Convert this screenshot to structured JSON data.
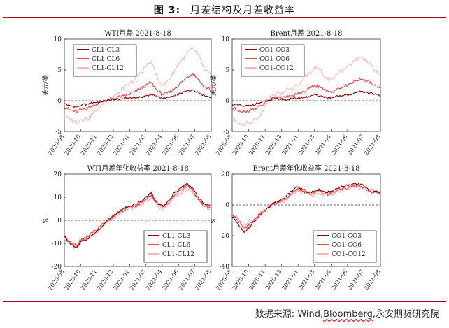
{
  "figure": {
    "label": "图 3:",
    "title": "月差结构及月差收益率",
    "source_prefix": "数据来源:",
    "source_main": "Wind,",
    "source_underlined": "Bloomberg",
    "source_suffix": ",永安期货研究院"
  },
  "colors": {
    "rule": "#a00015",
    "s1": "#8b0000",
    "s2": "#e8474c",
    "s3": "#f7b7bb"
  },
  "chart_data": [
    {
      "type": "line",
      "title": "WTI月差 2021-8-18",
      "ylabel": "美元/桶",
      "ylim": [
        -5,
        10
      ],
      "yticks": [
        "-5",
        "0",
        "5",
        "10"
      ],
      "xlim": [
        "2020-08-01",
        "2021-08-18"
      ],
      "x_tick_labels": [
        "2020-08",
        "2020-10",
        "2020-11",
        "2020-12",
        "2021-01",
        "2021-03",
        "2021-04",
        "2021-06",
        "2021-07",
        "2021-08"
      ],
      "zero_line": "dashed",
      "legend_position": "top-left",
      "x": [
        "2020-08-01",
        "2020-08-15",
        "2020-09-01",
        "2020-09-15",
        "2020-10-01",
        "2020-10-15",
        "2020-11-01",
        "2020-11-15",
        "2020-12-01",
        "2020-12-15",
        "2021-01-01",
        "2021-01-15",
        "2021-02-01",
        "2021-02-15",
        "2021-03-01",
        "2021-03-15",
        "2021-04-01",
        "2021-04-15",
        "2021-05-01",
        "2021-05-15",
        "2021-06-01",
        "2021-06-15",
        "2021-07-01",
        "2021-07-15",
        "2021-08-01",
        "2021-08-18"
      ],
      "series": [
        {
          "name": "CL1-CL3",
          "values": [
            -0.5,
            -0.8,
            -1.0,
            -0.7,
            -0.5,
            -0.3,
            -0.2,
            0.0,
            0.1,
            0.2,
            0.3,
            0.4,
            0.5,
            0.6,
            0.8,
            1.0,
            0.6,
            0.4,
            0.5,
            0.8,
            1.2,
            1.6,
            1.8,
            1.4,
            0.8,
            0.6
          ]
        },
        {
          "name": "CL1-CL6",
          "values": [
            -1.0,
            -1.5,
            -1.8,
            -1.4,
            -1.2,
            -0.8,
            -0.3,
            0.0,
            0.2,
            0.5,
            0.8,
            1.0,
            1.5,
            2.0,
            2.5,
            3.0,
            1.5,
            1.0,
            1.3,
            2.0,
            3.0,
            3.8,
            4.5,
            3.5,
            2.2,
            1.8
          ]
        },
        {
          "name": "CL1-CL12",
          "values": [
            -2.5,
            -3.0,
            -3.5,
            -3.0,
            -3.0,
            -2.0,
            -1.0,
            0.0,
            0.5,
            1.0,
            2.0,
            2.5,
            3.5,
            4.5,
            5.5,
            6.5,
            3.5,
            2.5,
            3.5,
            5.0,
            6.5,
            7.5,
            8.5,
            7.5,
            5.0,
            4.0
          ]
        }
      ]
    },
    {
      "type": "line",
      "title": "Brent月差 2021-8-18",
      "ylabel": "美元/桶",
      "ylim": [
        -5,
        10
      ],
      "yticks": [
        "-5",
        "0",
        "5",
        "10"
      ],
      "xlim": [
        "2020-08-01",
        "2021-08-18"
      ],
      "x_tick_labels": [
        "2020-08",
        "2020-10",
        "2020-11",
        "2020-12",
        "2021-01",
        "2021-03",
        "2021-04",
        "2021-06",
        "2021-07",
        "2021-08"
      ],
      "zero_line": "dashed",
      "legend_position": "top-left",
      "x": [
        "2020-08-01",
        "2020-08-15",
        "2020-09-01",
        "2020-09-15",
        "2020-10-01",
        "2020-10-15",
        "2020-11-01",
        "2020-11-15",
        "2020-12-01",
        "2020-12-15",
        "2021-01-01",
        "2021-01-15",
        "2021-02-01",
        "2021-02-15",
        "2021-03-01",
        "2021-03-15",
        "2021-04-01",
        "2021-04-15",
        "2021-05-01",
        "2021-05-15",
        "2021-06-01",
        "2021-06-15",
        "2021-07-01",
        "2021-07-15",
        "2021-08-01",
        "2021-08-18"
      ],
      "series": [
        {
          "name": "CO1-CO3",
          "values": [
            -0.6,
            -0.7,
            -0.9,
            -0.8,
            -0.5,
            -0.3,
            0.0,
            0.2,
            0.3,
            0.2,
            0.3,
            0.4,
            0.5,
            0.7,
            1.0,
            0.8,
            0.5,
            0.5,
            0.7,
            0.8,
            1.0,
            1.3,
            1.5,
            1.4,
            1.0,
            0.9
          ]
        },
        {
          "name": "CO1-CO6",
          "values": [
            -1.2,
            -1.5,
            -1.8,
            -1.6,
            -1.2,
            -0.8,
            0.0,
            0.5,
            0.5,
            0.6,
            0.8,
            1.0,
            1.5,
            2.0,
            2.5,
            2.2,
            1.5,
            1.5,
            2.0,
            2.2,
            2.8,
            3.2,
            3.5,
            3.2,
            2.5,
            2.2
          ]
        },
        {
          "name": "CO1-CO12",
          "values": [
            -3.0,
            -3.5,
            -3.8,
            -3.5,
            -3.0,
            -2.0,
            0.0,
            1.0,
            1.2,
            1.5,
            2.0,
            2.5,
            3.5,
            4.5,
            5.5,
            5.0,
            3.5,
            3.5,
            4.5,
            5.0,
            6.0,
            6.5,
            7.0,
            6.5,
            5.0,
            4.5
          ]
        }
      ]
    },
    {
      "type": "line",
      "title": "WTI月差年化收益率 2021-8-18",
      "ylabel": "%",
      "ylim": [
        -20,
        20
      ],
      "yticks": [
        "-20",
        "-10",
        "0",
        "10",
        "20"
      ],
      "xlim": [
        "2020-08-01",
        "2021-08-18"
      ],
      "x_tick_labels": [
        "2020-08",
        "2020-10",
        "2020-11",
        "2020-12",
        "2021-01",
        "2021-03",
        "2021-04",
        "2021-06",
        "2021-07",
        "2021-08"
      ],
      "zero_line": "dashed",
      "legend_position": "bottom-right",
      "x": [
        "2020-08-01",
        "2020-08-15",
        "2020-09-01",
        "2020-09-15",
        "2020-10-01",
        "2020-10-15",
        "2020-11-01",
        "2020-11-15",
        "2020-12-01",
        "2020-12-15",
        "2021-01-01",
        "2021-01-15",
        "2021-02-01",
        "2021-02-15",
        "2021-03-01",
        "2021-03-15",
        "2021-04-01",
        "2021-04-15",
        "2021-05-01",
        "2021-05-15",
        "2021-06-01",
        "2021-06-15",
        "2021-07-01",
        "2021-07-15",
        "2021-08-01",
        "2021-08-18"
      ],
      "series": [
        {
          "name": "CL1-CL3",
          "values": [
            -7,
            -10,
            -12,
            -9,
            -8,
            -6,
            -4,
            -1,
            1,
            3,
            5,
            6,
            7,
            8,
            10,
            12,
            7,
            6,
            9,
            12,
            14,
            16,
            14,
            10,
            7,
            6
          ]
        },
        {
          "name": "CL1-CL6",
          "values": [
            -7,
            -9,
            -11,
            -8,
            -7,
            -5,
            -3,
            -1,
            1,
            3,
            4,
            6,
            6,
            8,
            9,
            11,
            7,
            6,
            8,
            11,
            13,
            15,
            13,
            9,
            6,
            5
          ]
        },
        {
          "name": "CL1-CL12",
          "values": [
            -8,
            -10,
            -12,
            -9,
            -8,
            -6,
            -4,
            -1,
            1,
            2,
            4,
            5,
            6,
            7,
            8,
            10,
            6,
            5,
            7,
            10,
            12,
            13,
            12,
            9,
            6,
            5
          ]
        }
      ]
    },
    {
      "type": "line",
      "title": "Brent月差年化收益率 2021-8-18",
      "ylabel": "%",
      "ylim": [
        -40,
        20
      ],
      "yticks": [
        "-40",
        "-20",
        "0",
        "20"
      ],
      "xlim": [
        "2020-08-01",
        "2021-08-18"
      ],
      "x_tick_labels": [
        "2020-08",
        "2020-10",
        "2020-11",
        "2020-12",
        "2021-01",
        "2021-03",
        "2021-04",
        "2021-06",
        "2021-07",
        "2021-08"
      ],
      "zero_line": "dashed",
      "legend_position": "bottom-right",
      "x": [
        "2020-08-01",
        "2020-08-15",
        "2020-09-01",
        "2020-09-15",
        "2020-10-01",
        "2020-10-15",
        "2020-11-01",
        "2020-11-15",
        "2020-12-01",
        "2020-12-15",
        "2021-01-01",
        "2021-01-15",
        "2021-02-01",
        "2021-02-15",
        "2021-03-01",
        "2021-03-15",
        "2021-04-01",
        "2021-04-15",
        "2021-05-01",
        "2021-05-15",
        "2021-06-01",
        "2021-06-15",
        "2021-07-01",
        "2021-07-15",
        "2021-08-01",
        "2021-08-18"
      ],
      "series": [
        {
          "name": "CO1-CO3",
          "values": [
            -8,
            -12,
            -18,
            -14,
            -10,
            -6,
            -2,
            1,
            3,
            5,
            9,
            12,
            10,
            8,
            9,
            10,
            8,
            9,
            11,
            12,
            13,
            14,
            13,
            11,
            9,
            8
          ]
        },
        {
          "name": "CO1-CO6",
          "values": [
            -7,
            -10,
            -15,
            -12,
            -9,
            -5,
            -2,
            1,
            2,
            4,
            7,
            10,
            9,
            7,
            8,
            9,
            7,
            8,
            10,
            11,
            12,
            13,
            12,
            10,
            8,
            7
          ]
        },
        {
          "name": "CO1-CO12",
          "values": [
            -6,
            -9,
            -13,
            -11,
            -8,
            -5,
            -2,
            1,
            2,
            3,
            6,
            9,
            8,
            7,
            7,
            8,
            7,
            7,
            9,
            10,
            11,
            12,
            11,
            9,
            8,
            7
          ]
        }
      ]
    }
  ]
}
